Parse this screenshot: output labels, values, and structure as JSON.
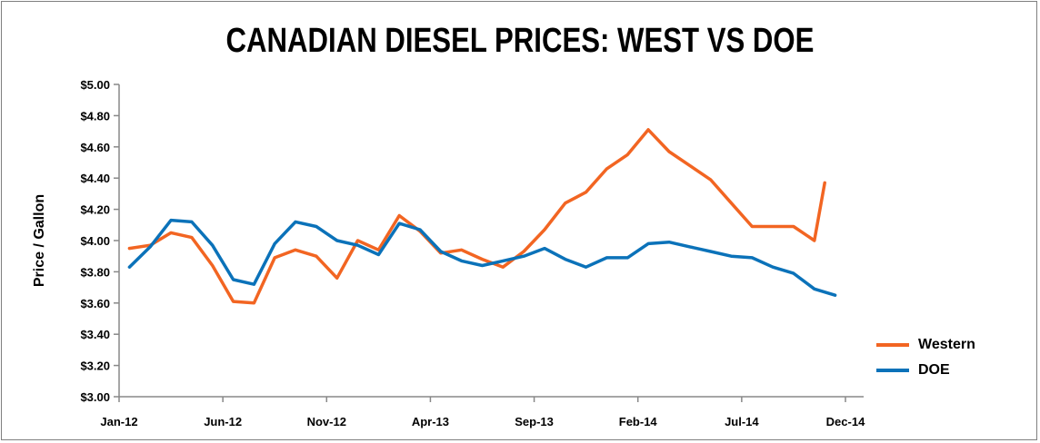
{
  "chart_data": {
    "type": "line",
    "title": "CANADIAN DIESEL PRICES: WEST VS DOE",
    "xlabel": "",
    "ylabel": "Price / Gallon",
    "x_tick_labels": [
      "Jan-12",
      "Jun-12",
      "Nov-12",
      "Apr-13",
      "Sep-13",
      "Feb-14",
      "Jul-14",
      "Dec-14"
    ],
    "y_tick_labels": [
      "$3.00",
      "$3.20",
      "$3.40",
      "$3.60",
      "$3.80",
      "$4.00",
      "$4.20",
      "$4.40",
      "$4.60",
      "$4.80",
      "$5.00"
    ],
    "ylim": [
      3.0,
      5.0
    ],
    "y_ticks": [
      3.0,
      3.2,
      3.4,
      3.6,
      3.8,
      4.0,
      4.2,
      4.4,
      4.6,
      4.8,
      5.0
    ],
    "x": [
      "Jan-12",
      "Feb-12",
      "Apr-12",
      "May-12",
      "Jun-12",
      "Jul-12",
      "Aug-12",
      "Sep-12",
      "Oct-12",
      "Nov-12",
      "Dec-12",
      "Jan-13",
      "Feb-13",
      "Mar-13",
      "Apr-13",
      "May-13",
      "Jun-13",
      "Jul-13",
      "Aug-13",
      "Sep-13",
      "Oct-13",
      "Nov-13",
      "Dec-13",
      "Jan-14",
      "Feb-14",
      "Mar-14",
      "Apr-14",
      "May-14",
      "Jun-14",
      "Jul-14",
      "Aug-14",
      "Sep-14",
      "Oct-14",
      "Nov-14",
      "Dec-14"
    ],
    "x_positions": [
      0.0,
      1.5,
      2.5,
      3.5,
      4.5,
      5.5,
      6.5,
      7.5,
      8.5,
      9.5,
      10.5,
      11.5,
      12.5,
      13.5,
      14.5,
      15.5,
      16.5,
      17.5,
      18.5,
      19.5,
      20.5,
      21.5,
      22.5,
      23.5,
      24.5,
      25.5,
      26.5,
      27.5,
      28.5,
      29.5,
      30.5,
      31.5,
      32.5,
      33.5,
      34.0
    ],
    "x_tick_positions": [
      0,
      5,
      10,
      15,
      20,
      25,
      30,
      35
    ],
    "xlim": [
      0,
      35
    ],
    "series": [
      {
        "name": "Western",
        "color": "#f26522",
        "x_positions": [
          0.5,
          1.5,
          2.5,
          3.5,
          4.5,
          5.5,
          6.5,
          7.5,
          8.5,
          9.5,
          10.5,
          11.5,
          12.5,
          13.5,
          14.5,
          15.5,
          16.5,
          17.5,
          18.5,
          19.5,
          20.5,
          21.5,
          22.5,
          23.5,
          24.5,
          25.5,
          26.5,
          27.5,
          28.5,
          29.5,
          30.5,
          31.5,
          32.5,
          33.5,
          34.0
        ],
        "values": [
          3.95,
          3.97,
          4.05,
          4.02,
          3.84,
          3.61,
          3.6,
          3.89,
          3.94,
          3.9,
          3.76,
          4.0,
          3.94,
          4.16,
          4.06,
          3.92,
          3.94,
          3.88,
          3.83,
          3.93,
          4.07,
          4.24,
          4.31,
          4.46,
          4.55,
          4.71,
          4.57,
          4.48,
          4.39,
          4.24,
          4.09,
          4.09,
          4.09,
          4.0,
          4.37
        ]
      },
      {
        "name": "DOE",
        "color": "#0b72b9",
        "x_positions": [
          0.5,
          1.5,
          2.5,
          3.5,
          4.5,
          5.5,
          6.5,
          7.5,
          8.5,
          9.5,
          10.5,
          11.5,
          12.5,
          13.5,
          14.5,
          15.5,
          16.5,
          17.5,
          18.5,
          19.5,
          20.5,
          21.5,
          22.5,
          23.5,
          24.5,
          25.5,
          26.5,
          27.5,
          28.5,
          29.5,
          30.5,
          31.5,
          32.5,
          33.5,
          34.5
        ],
        "values": [
          3.83,
          3.96,
          4.13,
          4.12,
          3.97,
          3.75,
          3.72,
          3.98,
          4.12,
          4.09,
          4.0,
          3.97,
          3.91,
          4.11,
          4.07,
          3.93,
          3.87,
          3.84,
          3.87,
          3.9,
          3.95,
          3.88,
          3.83,
          3.89,
          3.89,
          3.98,
          3.99,
          3.96,
          3.93,
          3.9,
          3.89,
          3.83,
          3.79,
          3.69,
          3.65
        ]
      }
    ],
    "grid": false,
    "legend_position": "right"
  }
}
